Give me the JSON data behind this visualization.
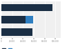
{
  "bar1_values": [
    95000,
    45000,
    58000
  ],
  "bar2_values": [
    0,
    14000,
    0
  ],
  "bar1_color": "#1b2f45",
  "bar2_color": "#2f7fc1",
  "background_color": "#ffffff",
  "plot_bg_color": "#f0f0f0",
  "xlim": [
    0,
    110000
  ],
  "bar_height": 0.6,
  "legend_color1": "#1b2f45",
  "legend_color2": "#2f7fc1",
  "grid_color": "#ffffff",
  "tick_color": "#888888",
  "xticks": [
    0,
    20000,
    40000,
    60000,
    80000,
    100000
  ],
  "xtick_labels": [
    "0",
    "20,000",
    "40,000",
    "60,000",
    "80,000",
    "100,000"
  ]
}
